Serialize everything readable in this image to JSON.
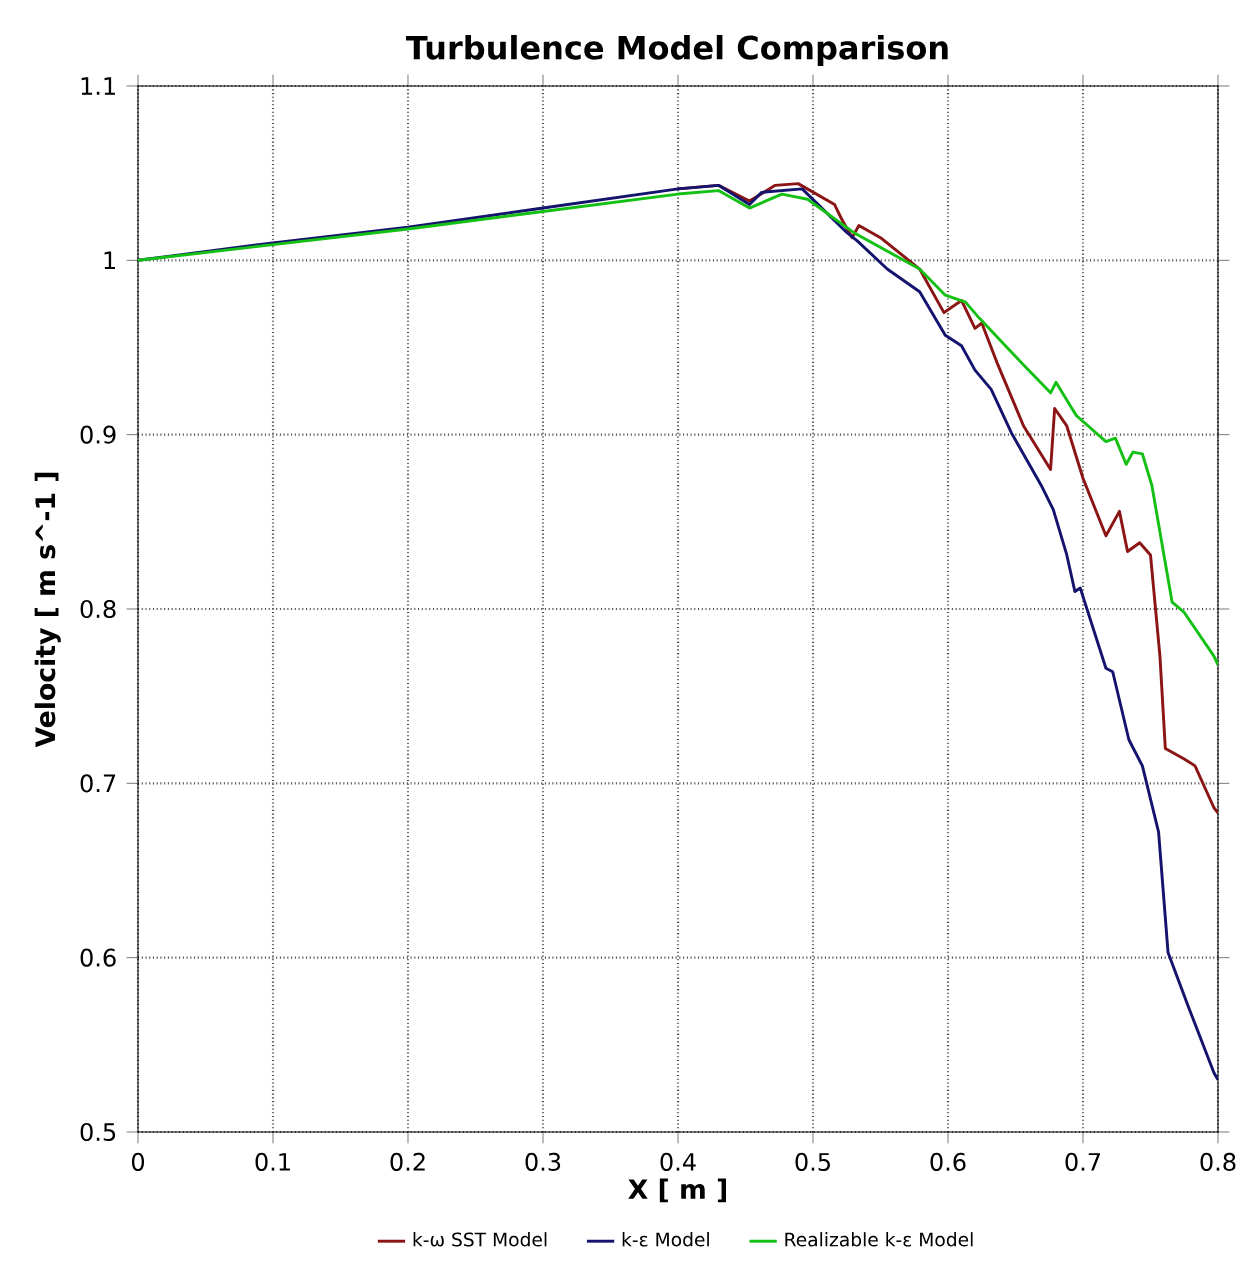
{
  "chart_data": {
    "type": "line",
    "title": "Turbulence Model Comparison",
    "xlabel": "X [ m ]",
    "ylabel": "Velocity [ m s^-1 ]",
    "xlim": [
      0,
      0.8
    ],
    "ylim": [
      0.5,
      1.1
    ],
    "xticks": [
      0,
      0.1,
      0.2,
      0.3,
      0.4,
      0.5,
      0.6,
      0.7,
      0.8
    ],
    "yticks": [
      0.5,
      0.6,
      0.7,
      0.8,
      0.9,
      1,
      1.1
    ],
    "grid": true,
    "legend": "bottom",
    "marker": "none",
    "line_style": "solid",
    "series": [
      {
        "name": "k-ω SST Model",
        "color": "#8b1414",
        "x": [
          0.4,
          0.43,
          0.453,
          0.472,
          0.489,
          0.516,
          0.521,
          0.529,
          0.534,
          0.55,
          0.579,
          0.597,
          0.61,
          0.62,
          0.625,
          0.637,
          0.656,
          0.676,
          0.679,
          0.688,
          0.7,
          0.717,
          0.727,
          0.733,
          0.742,
          0.75,
          0.757,
          0.761,
          0.775,
          0.783,
          0.797,
          0.8
        ],
        "values": [
          1.041,
          1.043,
          1.034,
          1.043,
          1.044,
          1.032,
          1.024,
          1.013,
          1.02,
          1.013,
          0.995,
          0.97,
          0.977,
          0.961,
          0.964,
          0.94,
          0.905,
          0.88,
          0.915,
          0.905,
          0.875,
          0.842,
          0.856,
          0.833,
          0.838,
          0.831,
          0.773,
          0.72,
          0.714,
          0.71,
          0.686,
          0.683
        ]
      },
      {
        "name": "k-ε Model",
        "color": "#14146e",
        "x": [
          0,
          0.1,
          0.2,
          0.3,
          0.4,
          0.43,
          0.453,
          0.462,
          0.492,
          0.525,
          0.533,
          0.555,
          0.579,
          0.598,
          0.61,
          0.62,
          0.632,
          0.647,
          0.669,
          0.678,
          0.688,
          0.694,
          0.698,
          0.717,
          0.722,
          0.734,
          0.744,
          0.756,
          0.763,
          0.778,
          0.797,
          0.8
        ],
        "values": [
          1.0,
          1.01,
          1.019,
          1.03,
          1.041,
          1.043,
          1.032,
          1.039,
          1.041,
          1.016,
          1.011,
          0.995,
          0.982,
          0.957,
          0.951,
          0.937,
          0.926,
          0.901,
          0.871,
          0.857,
          0.831,
          0.81,
          0.812,
          0.766,
          0.764,
          0.725,
          0.71,
          0.672,
          0.603,
          0.572,
          0.534,
          0.53
        ]
      },
      {
        "name": "Realizable k-ε Model",
        "color": "#14c014",
        "x": [
          0,
          0.1,
          0.2,
          0.3,
          0.4,
          0.43,
          0.453,
          0.477,
          0.496,
          0.53,
          0.579,
          0.598,
          0.613,
          0.623,
          0.656,
          0.676,
          0.68,
          0.695,
          0.717,
          0.724,
          0.732,
          0.737,
          0.744,
          0.751,
          0.766,
          0.775,
          0.797,
          0.8
        ],
        "values": [
          1.0,
          1.009,
          1.018,
          1.028,
          1.038,
          1.04,
          1.03,
          1.038,
          1.035,
          1.016,
          0.995,
          0.98,
          0.976,
          0.967,
          0.94,
          0.924,
          0.93,
          0.911,
          0.896,
          0.898,
          0.883,
          0.89,
          0.889,
          0.871,
          0.804,
          0.798,
          0.773,
          0.768
        ]
      }
    ]
  }
}
